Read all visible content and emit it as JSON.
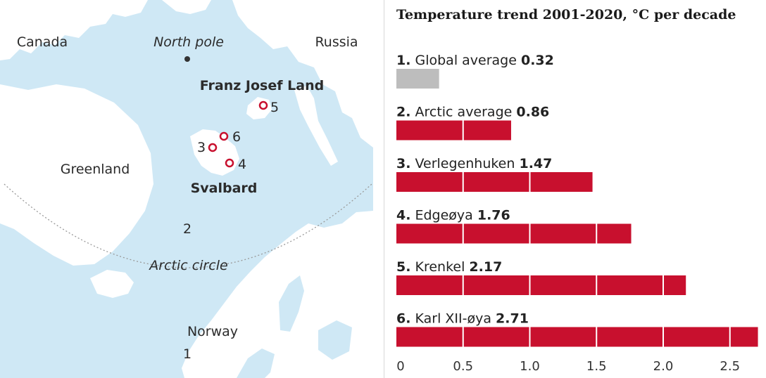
{
  "map": {
    "labels": {
      "canada": "Canada",
      "north_pole": "North pole",
      "russia": "Russia",
      "franz_josef_land": "Franz Josef Land",
      "greenland": "Greenland",
      "svalbard": "Svalbard",
      "arctic_circle": "Arctic circle",
      "norway": "Norway"
    },
    "station_markers": [
      "1",
      "2",
      "3",
      "4",
      "5",
      "6"
    ],
    "colors": {
      "ocean": "#cfe8f5",
      "land": "#ffffff",
      "station": "#c8102e"
    }
  },
  "chart_data": {
    "type": "bar",
    "title": "Temperature trend 2001-2020, °C per decade",
    "categories": [
      {
        "num": "1.",
        "name": "Global average",
        "value": 0.32,
        "color": "#bdbdbd"
      },
      {
        "num": "2.",
        "name": "Arctic average",
        "value": 0.86,
        "color": "#c8102e"
      },
      {
        "num": "3.",
        "name": "Verlegenhuken",
        "value": 1.47,
        "color": "#c8102e"
      },
      {
        "num": "4.",
        "name": "Edgeøya",
        "value": 1.76,
        "color": "#c8102e"
      },
      {
        "num": "5.",
        "name": "Krenkel",
        "value": 2.17,
        "color": "#c8102e"
      },
      {
        "num": "6.",
        "name": "Karl XII-øya",
        "value": 2.71,
        "color": "#c8102e"
      }
    ],
    "value_labels": [
      "0.32",
      "0.86",
      "1.47",
      "1.76",
      "2.17",
      "2.71"
    ],
    "x_ticks": [
      "0",
      "0.5",
      "1.0",
      "1.5",
      "2.0",
      "2.5"
    ],
    "x_tick_values": [
      0,
      0.5,
      1.0,
      1.5,
      2.0,
      2.5
    ],
    "xlim": [
      0,
      2.71
    ],
    "orientation": "horizontal",
    "grid": "segment separators every 0.5"
  }
}
